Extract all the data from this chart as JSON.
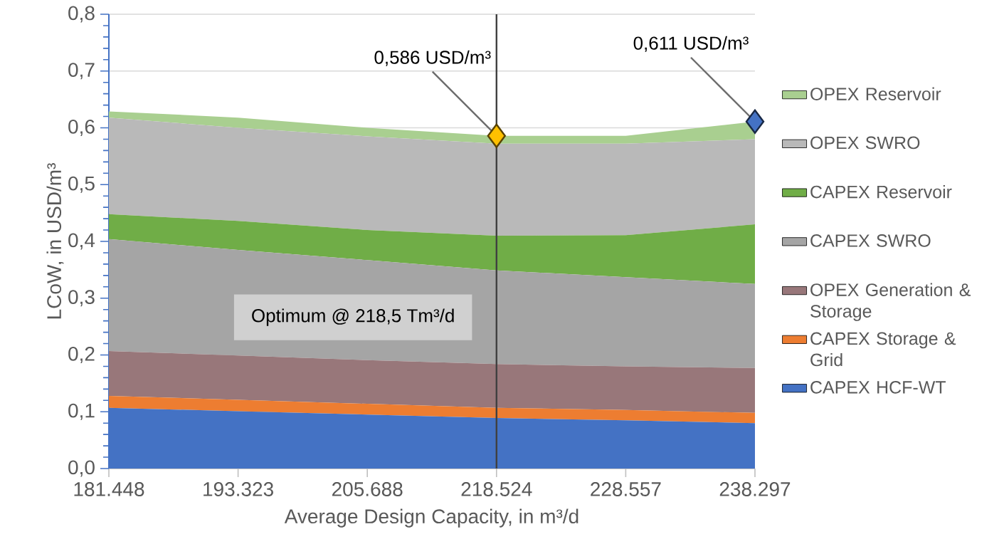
{
  "chart_data": {
    "type": "area",
    "xlabel": "Average Design Capacity, in m³/d",
    "ylabel": "LCoW, in USD/m³",
    "categories": [
      "181.448",
      "193.323",
      "205.688",
      "218.524",
      "228.557",
      "238.297"
    ],
    "series": [
      {
        "name": "CAPEX HCF-WT",
        "color": "#4472c4",
        "values": [
          0.107,
          0.101,
          0.095,
          0.089,
          0.085,
          0.08
        ]
      },
      {
        "name": "CAPEX Storage & Grid",
        "color": "#ed7d31",
        "values": [
          0.021,
          0.02,
          0.019,
          0.018,
          0.018,
          0.018
        ]
      },
      {
        "name": "OPEX Generation & Storage",
        "color": "#98777a",
        "values": [
          0.079,
          0.078,
          0.077,
          0.077,
          0.077,
          0.079
        ]
      },
      {
        "name": "CAPEX SWRO",
        "color": "#a5a5a5",
        "values": [
          0.197,
          0.186,
          0.176,
          0.165,
          0.157,
          0.148
        ]
      },
      {
        "name": "CAPEX Reservoir",
        "color": "#70ad47",
        "values": [
          0.044,
          0.051,
          0.053,
          0.061,
          0.074,
          0.105
        ]
      },
      {
        "name": "OPEX SWRO",
        "color": "#b9b9b9",
        "values": [
          0.17,
          0.164,
          0.165,
          0.162,
          0.161,
          0.15
        ]
      },
      {
        "name": "OPEX Reservoir",
        "color": "#a9cf90",
        "values": [
          0.011,
          0.018,
          0.015,
          0.014,
          0.014,
          0.031
        ]
      },
      {
        "type": "scatter",
        "marker": "diamond",
        "x": [
          "218.524",
          "238.297"
        ],
        "values": [
          0.586,
          0.611
        ],
        "colors": [
          "#ffc000",
          "#4472c4"
        ]
      }
    ],
    "ylim": [
      0,
      0.8
    ],
    "yticks": [
      {
        "value": 0,
        "label": "0,0"
      },
      {
        "value": 0.1,
        "label": "0,1"
      },
      {
        "value": 0.2,
        "label": "0,2"
      },
      {
        "value": 0.3,
        "label": "0,3"
      },
      {
        "value": 0.4,
        "label": "0,4"
      },
      {
        "value": 0.5,
        "label": "0,5"
      },
      {
        "value": 0.6,
        "label": "0,6"
      },
      {
        "value": 0.7,
        "label": "0,7"
      },
      {
        "value": 0.8,
        "label": "0,8"
      }
    ],
    "ref_lines": [
      {
        "axis": "x",
        "value": "218.524",
        "label": "Optimum @ 218,5 Tm³/d",
        "color": "#404040"
      }
    ],
    "annotations": [
      {
        "text": "0,586 USD/m³",
        "x": "218.524",
        "y": 0.586
      },
      {
        "text": "0,611 USD/m³",
        "x": "238.297",
        "y": 0.611
      }
    ],
    "grid": "y",
    "legend": "right",
    "stacked": true
  }
}
